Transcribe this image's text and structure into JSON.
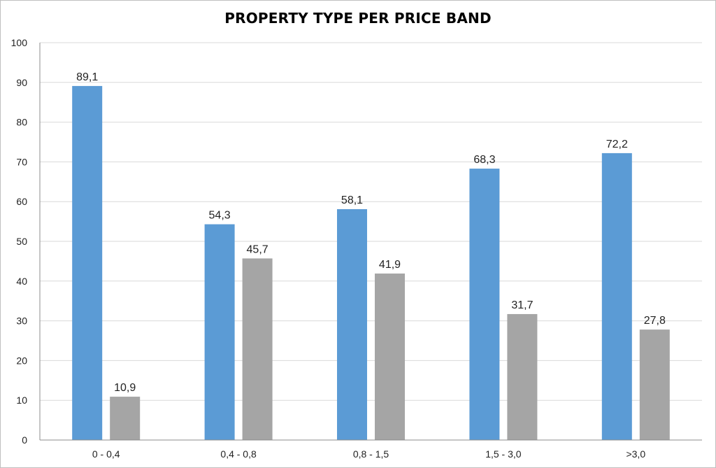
{
  "chart_data": {
    "type": "bar",
    "title": "PROPERTY TYPE PER PRICE BAND",
    "categories": [
      "0 - 0,4",
      "0,4 - 0,8",
      "0,8 - 1,5",
      "1,5 - 3,0",
      ">3,0"
    ],
    "series": [
      {
        "values": [
          89.1,
          54.3,
          58.1,
          68.3,
          72.2
        ],
        "labels": [
          "89,1",
          "54,3",
          "58,1",
          "68,3",
          "72,2"
        ],
        "color": "#5b9bd5"
      },
      {
        "values": [
          10.9,
          45.7,
          41.9,
          31.7,
          27.8
        ],
        "labels": [
          "10,9",
          "45,7",
          "41,9",
          "31,7",
          "27,8"
        ],
        "color": "#a5a5a5"
      }
    ],
    "ylim": [
      0,
      100
    ],
    "yticks": [
      0,
      10,
      20,
      30,
      40,
      50,
      60,
      70,
      80,
      90,
      100
    ],
    "grid": true,
    "legend": "none"
  }
}
